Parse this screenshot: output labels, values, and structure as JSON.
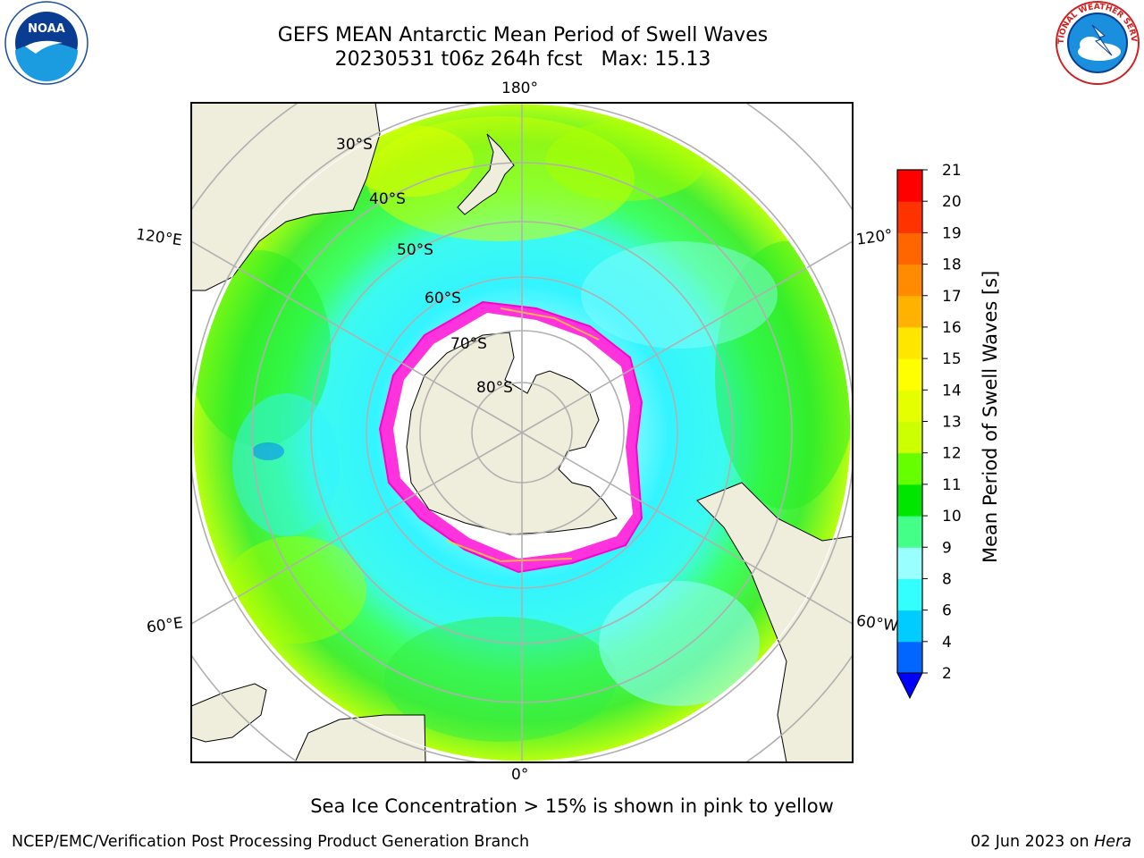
{
  "title": {
    "line1": "GEFS MEAN Antarctic Mean Period of Swell Waves",
    "line2": "20230531 t06z 264h fcst   Max: 15.13"
  },
  "map": {
    "projection": "south-polar-stereographic",
    "longitude_labels": {
      "top": "180°",
      "bottom": "0°",
      "left_upper": "120°E",
      "left_lower": "60°E",
      "right_upper": "120°",
      "right_lower": "60°W"
    },
    "latitude_labels": [
      "30°S",
      "40°S",
      "50°S",
      "60°S",
      "70°S",
      "80°S"
    ],
    "colors": {
      "land": "#efeddc",
      "ocean_low": "#00f2ff",
      "ocean_mid": "#86fcfc",
      "ocean_green": "#3fff60",
      "ocean_yellowgreen": "#cbff00",
      "sea_ice": "#ff33dd",
      "sea_ice_inner": "#ffffff",
      "grid": "#b0b0b0"
    }
  },
  "colorbar": {
    "label": "Mean Period of Swell Waves [s]",
    "ticks": [
      "2",
      "4",
      "6",
      "8",
      "9",
      "10",
      "11",
      "12",
      "13",
      "14",
      "15",
      "16",
      "17",
      "18",
      "19",
      "20",
      "21"
    ],
    "colors": [
      "#0066ff",
      "#00ccff",
      "#33ffff",
      "#99ffff",
      "#44ff88",
      "#00e600",
      "#66ff00",
      "#ccff00",
      "#e6ff00",
      "#ffff00",
      "#ffe600",
      "#ffb300",
      "#ff8c00",
      "#ff6600",
      "#ff3300",
      "#ff0000"
    ],
    "extend_color": "#0000ff"
  },
  "caption": "Sea Ice Concentration > 15% is shown in pink to yellow",
  "footer": {
    "left": "NCEP/EMC/Verification Post Processing Product Generation Branch",
    "right_date": "02 Jun 2023 on ",
    "right_host": "Hera"
  },
  "logos": {
    "noaa_text": "NOAA",
    "nws_text": "NATIONAL WEATHER SERVICE"
  }
}
